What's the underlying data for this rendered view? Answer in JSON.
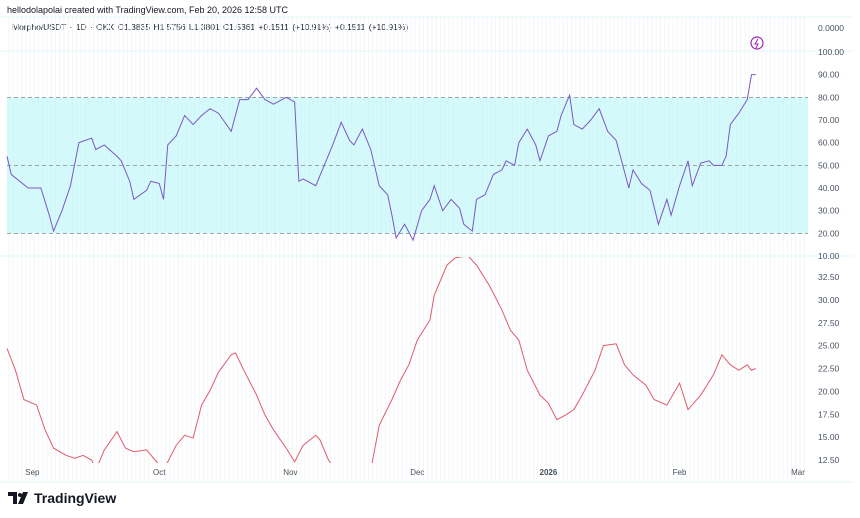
{
  "header": {
    "credit": "hellodolapolai created with TradingView.com, Feb 20, 2026 12:58 UTC",
    "legend": "Morpho/USDT · 1D · OKX  O1.3835  H1.5756  L1.3801  C1.5361  +0.1511 (+10.91%)  +0.1511 (+10.91%)"
  },
  "logo": {
    "text": "TradingView",
    "icon": "tradingview-logo-icon"
  },
  "colors": {
    "rsi": "#7e57c2",
    "band": "#b2f5f8",
    "second": "#e05c6c",
    "grid": "#e0f7fa"
  },
  "chart_data": [
    {
      "type": "line",
      "pane": "price",
      "ylabels": [
        "0.0000"
      ],
      "icon": "lightning-icon"
    },
    {
      "type": "line",
      "pane": "rsi",
      "ylim": [
        10,
        100
      ],
      "band": [
        20,
        80
      ],
      "midline": 50,
      "yticks": [
        "100.00",
        "90.00",
        "80.00",
        "70.00",
        "60.00",
        "50.00",
        "40.00",
        "30.00",
        "20.00",
        "10.00"
      ],
      "x": [
        0,
        1,
        3,
        5,
        8,
        10,
        11,
        13,
        15,
        17,
        20,
        21,
        23,
        26,
        27,
        29,
        30,
        33,
        34,
        36,
        37,
        38,
        40,
        42,
        44,
        46,
        48,
        50,
        53,
        55,
        57,
        59,
        61,
        63,
        66,
        68,
        69,
        70,
        73,
        75,
        77,
        79,
        81,
        82,
        84,
        86,
        88,
        90,
        91,
        92,
        94,
        96,
        98,
        100,
        101,
        103,
        105,
        107,
        108,
        110,
        111,
        113,
        115,
        117,
        118,
        120,
        121,
        123,
        125,
        126,
        128,
        130,
        131,
        133,
        134,
        136,
        138,
        140,
        142,
        144,
        145,
        147,
        148,
        150,
        152,
        154,
        156,
        157,
        159,
        161,
        162,
        164,
        166,
        167,
        169,
        170,
        171,
        173,
        175,
        176,
        177
      ],
      "values": [
        54,
        46,
        43,
        40,
        40,
        28,
        21,
        30,
        41,
        60,
        62,
        57,
        59,
        54,
        52,
        43,
        35,
        39,
        43,
        42,
        35,
        59,
        63,
        72,
        68,
        72,
        75,
        73,
        65,
        79,
        79,
        84,
        79,
        77,
        80,
        78,
        43,
        44,
        41,
        50,
        59,
        69,
        61,
        59,
        66,
        57,
        41,
        37,
        28,
        18,
        24,
        17,
        30,
        35,
        41,
        30,
        35,
        31,
        24,
        21,
        35,
        37,
        46,
        48,
        52,
        50,
        60,
        66,
        59,
        52,
        63,
        65,
        72,
        81,
        68,
        66,
        70,
        75,
        65,
        61,
        54,
        40,
        48,
        42,
        39,
        24,
        35,
        28,
        41,
        52,
        41,
        51,
        52,
        50,
        50,
        54,
        68,
        73,
        79,
        90,
        90
      ]
    },
    {
      "type": "line",
      "pane": "lower",
      "ylim": [
        10.5,
        35
      ],
      "yticks": [
        "32.50",
        "30.00",
        "27.50",
        "25.00",
        "22.50",
        "20.00",
        "17.50",
        "15.00",
        "12.50"
      ],
      "x": [
        0,
        2,
        4,
        7,
        9,
        11,
        14,
        16,
        18,
        20,
        21,
        23,
        26,
        28,
        30,
        33,
        35,
        37,
        40,
        42,
        44,
        46,
        48,
        50,
        53,
        54,
        56,
        59,
        61,
        63,
        66,
        68,
        70,
        73,
        74,
        76,
        78,
        80,
        84,
        86,
        88,
        91,
        93,
        95,
        97,
        100,
        101,
        104,
        106,
        109,
        111,
        114,
        117,
        119,
        121,
        123,
        126,
        128,
        130,
        132,
        134,
        136,
        139,
        141,
        144,
        146,
        148,
        151,
        153,
        156,
        159,
        161,
        164,
        167,
        169,
        171,
        173,
        175,
        176,
        177
      ],
      "values": [
        24.7,
        22.3,
        19.1,
        18.5,
        15.8,
        13.8,
        13,
        12.7,
        13,
        12.5,
        11.4,
        13.6,
        15.6,
        13.8,
        13.4,
        13.6,
        12.5,
        11.4,
        14.1,
        15.2,
        14.9,
        18.5,
        20.1,
        22.1,
        24,
        24.2,
        22.3,
        19.6,
        17.4,
        15.8,
        13.8,
        12.3,
        14.1,
        15.2,
        14.7,
        12.5,
        11.2,
        8,
        8,
        11.4,
        16.3,
        19.1,
        21.2,
        22.9,
        25.6,
        27.8,
        30.5,
        33.8,
        34.6,
        34.8,
        33.8,
        31.6,
        28.9,
        26.7,
        25.6,
        22.3,
        19.6,
        18.7,
        16.9,
        17.4,
        18,
        19.6,
        22.3,
        25,
        25.2,
        22.9,
        21.8,
        20.7,
        19.1,
        18.5,
        20.9,
        18,
        19.6,
        21.8,
        24,
        22.9,
        22.3,
        22.9,
        22.3,
        22.5
      ]
    },
    {
      "type": "xaxis",
      "labels": [
        {
          "day": 6,
          "text": "Sep"
        },
        {
          "day": 36,
          "text": "Oct"
        },
        {
          "day": 67,
          "text": "Nov"
        },
        {
          "day": 97,
          "text": "Dec"
        },
        {
          "day": 128,
          "text": "2026",
          "bold": true
        },
        {
          "day": 159,
          "text": "Feb"
        },
        {
          "day": 187,
          "text": "Mar"
        }
      ]
    }
  ]
}
